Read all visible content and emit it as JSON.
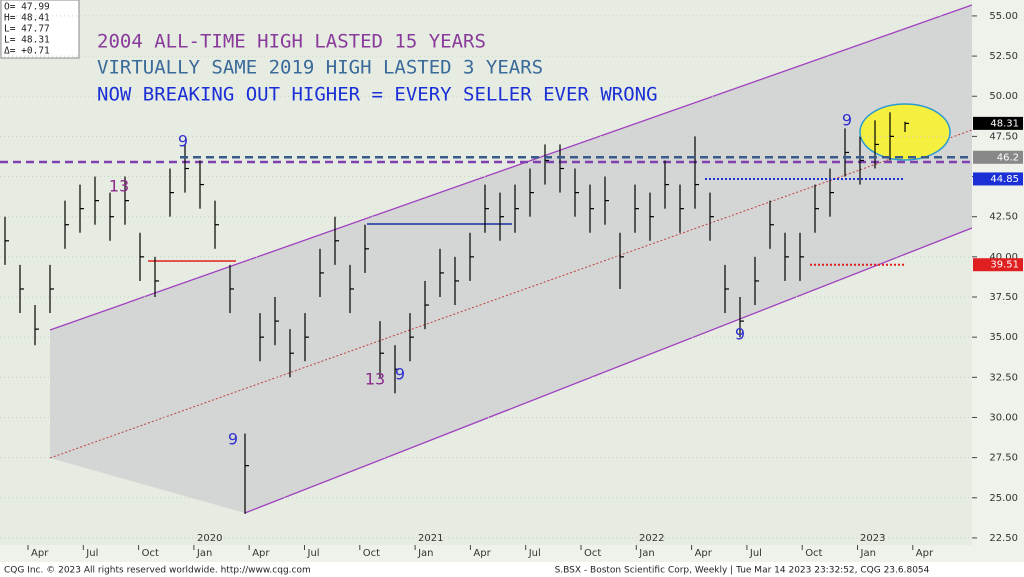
{
  "chart_data": {
    "type": "ohlc",
    "annotations": [
      "2004 ALL-TIME HIGH LASTED 15 YEARS",
      "VIRTUALLY SAME 2019 HIGH LASTED 3 YEARS",
      "NOW BREAKING OUT HIGHER = EVERY SELLER EVER WRONG"
    ],
    "quote_box": [
      "O=  47.99",
      "H=  48.41",
      "L=  47.77",
      "L=  48.31",
      "Δ=  +0.71"
    ],
    "footer_left": "CQG Inc. © 2023 All rights reserved worldwide. http://www.cqg.com",
    "footer_right": "S.BSX - Boston Scientific Corp, Weekly | Tue Mar 14 2023 23:32:52, CQG 23.6.8054",
    "month_labels": [
      "Apr",
      "Jul",
      "Oct",
      "Jan",
      "Apr",
      "Jul",
      "Oct",
      "Jan",
      "Apr",
      "Jul",
      "Oct",
      "Jan",
      "Apr",
      "Jul",
      "Oct",
      "Jan",
      "Apr"
    ],
    "year_labels": [
      "2020",
      "2021",
      "2022",
      "2023"
    ],
    "ylim": [
      22.06,
      55.68
    ],
    "yticks": [
      {
        "value": 22.5,
        "label": "22.50"
      },
      {
        "value": 25,
        "label": "25.00"
      },
      {
        "value": 27.5,
        "label": "27.50"
      },
      {
        "value": 30,
        "label": "30.00"
      },
      {
        "value": 32.5,
        "label": "32.50"
      },
      {
        "value": 35,
        "label": "35.00"
      },
      {
        "value": 37.5,
        "label": "37.50"
      },
      {
        "value": 40,
        "label": "40.00"
      },
      {
        "value": 42.5,
        "label": "42.50"
      },
      {
        "value": 45,
        "label": "45.00"
      },
      {
        "value": 47.5,
        "label": "47.50"
      },
      {
        "value": 50,
        "label": "50.00"
      },
      {
        "value": 52.5,
        "label": "52.50"
      },
      {
        "value": 55,
        "label": "55.00"
      }
    ],
    "grid": true,
    "color": "#000000",
    "high": [
      42.5,
      39.5,
      37,
      39.5,
      43.5,
      44.5,
      45,
      44,
      45,
      41.5,
      40,
      45.5,
      47,
      46,
      43.5,
      39.5,
      29,
      36.5,
      37.5,
      35.5,
      36.5,
      40.5,
      42.5,
      39.5,
      42,
      36,
      34.5,
      36.5,
      38.5,
      40.5,
      40,
      41.5,
      44.5,
      44,
      44.5,
      45.5,
      47,
      47,
      45.5,
      44.5,
      45,
      41.5,
      44.5,
      44,
      46,
      44.5,
      47.5,
      44,
      39.5,
      37.5,
      40,
      43.5,
      41.5,
      41.5,
      44.5,
      45.5,
      48,
      47.5,
      48.5,
      49,
      48.41
    ],
    "low": [
      39.5,
      36.5,
      34.5,
      36.5,
      40.5,
      41.5,
      42,
      41,
      42,
      38.5,
      37.5,
      42.5,
      44,
      43,
      40.5,
      36.5,
      24,
      33.5,
      34.5,
      32.5,
      33.5,
      37.5,
      39.5,
      36.5,
      39,
      32.5,
      31.5,
      33.5,
      35.5,
      37.5,
      37,
      38.5,
      41.5,
      41,
      41.5,
      42.5,
      44.5,
      44,
      42.5,
      41.5,
      42,
      38,
      41.5,
      41,
      43,
      41.5,
      43,
      41,
      36.5,
      35,
      37,
      40.5,
      38.5,
      38.5,
      41.5,
      42.5,
      45,
      44.5,
      45.5,
      46,
      47.77
    ],
    "close": [
      41,
      38,
      35.5,
      38,
      42,
      43,
      43.5,
      42.5,
      43.5,
      40,
      38.5,
      44,
      45.5,
      44.5,
      42,
      38,
      27,
      35,
      36,
      34,
      35,
      39,
      41,
      38,
      40.5,
      34,
      33,
      35,
      37,
      39,
      38.5,
      40,
      43,
      42.5,
      43,
      44,
      46,
      45.5,
      44,
      43,
      43.5,
      40,
      43,
      42.5,
      44.5,
      43,
      44.5,
      42.5,
      38,
      36,
      38.5,
      42,
      40,
      40,
      43,
      44,
      46.5,
      46,
      47,
      47.5,
      48.31
    ],
    "levels": [
      {
        "value": 48.31,
        "color": "#000000"
      },
      {
        "value": 46.2,
        "color": "#888888"
      },
      {
        "value": 44.85,
        "color": "#1a2fd6"
      },
      {
        "value": 39.51,
        "color": "#e02020"
      }
    ],
    "counts": [
      {
        "text": "9",
        "color": "#3030d0"
      },
      {
        "text": "13",
        "color": "#8a2a8a"
      },
      {
        "text": "9",
        "color": "#3030d0"
      },
      {
        "text": "13",
        "color": "#8a2a8a"
      },
      {
        "text": "9",
        "color": "#3030d0"
      },
      {
        "text": "9",
        "color": "#3030d0"
      },
      {
        "text": "9",
        "color": "#3030d0"
      }
    ]
  }
}
